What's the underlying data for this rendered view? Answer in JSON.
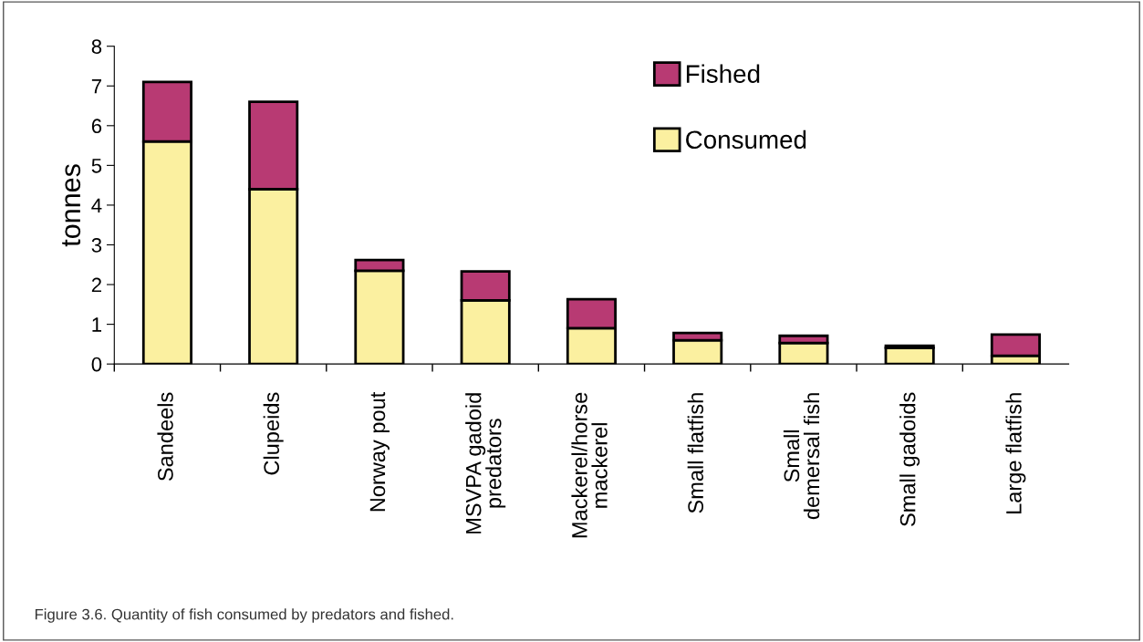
{
  "chart_data": {
    "type": "bar",
    "stacked": true,
    "ylabel": "tonnes",
    "categories": [
      "Sandeels",
      "Clupeids",
      "Norway pout",
      "MSVPA gadoid\npredators",
      "Mackerel/horse\nmackerel",
      "Small flatfish",
      "Small\ndemersal fish",
      "Small gadoids",
      "Large flatfish"
    ],
    "series": [
      {
        "name": "Consumed",
        "color": "#fbf0a0",
        "values": [
          5.6,
          4.4,
          2.35,
          1.6,
          0.9,
          0.6,
          0.53,
          0.41,
          0.21
        ]
      },
      {
        "name": "Fished",
        "color": "#b83a73",
        "values": [
          1.5,
          2.2,
          0.27,
          0.73,
          0.73,
          0.18,
          0.18,
          0.05,
          0.53
        ]
      }
    ],
    "ylim": [
      0,
      8
    ],
    "yticks": [
      0,
      1,
      2,
      3,
      4,
      5,
      6,
      7,
      8
    ],
    "grid": false,
    "legend": "top right",
    "annotations": [
      "Figure 3.6. Quantity of fish consumed by predators and fished."
    ]
  }
}
